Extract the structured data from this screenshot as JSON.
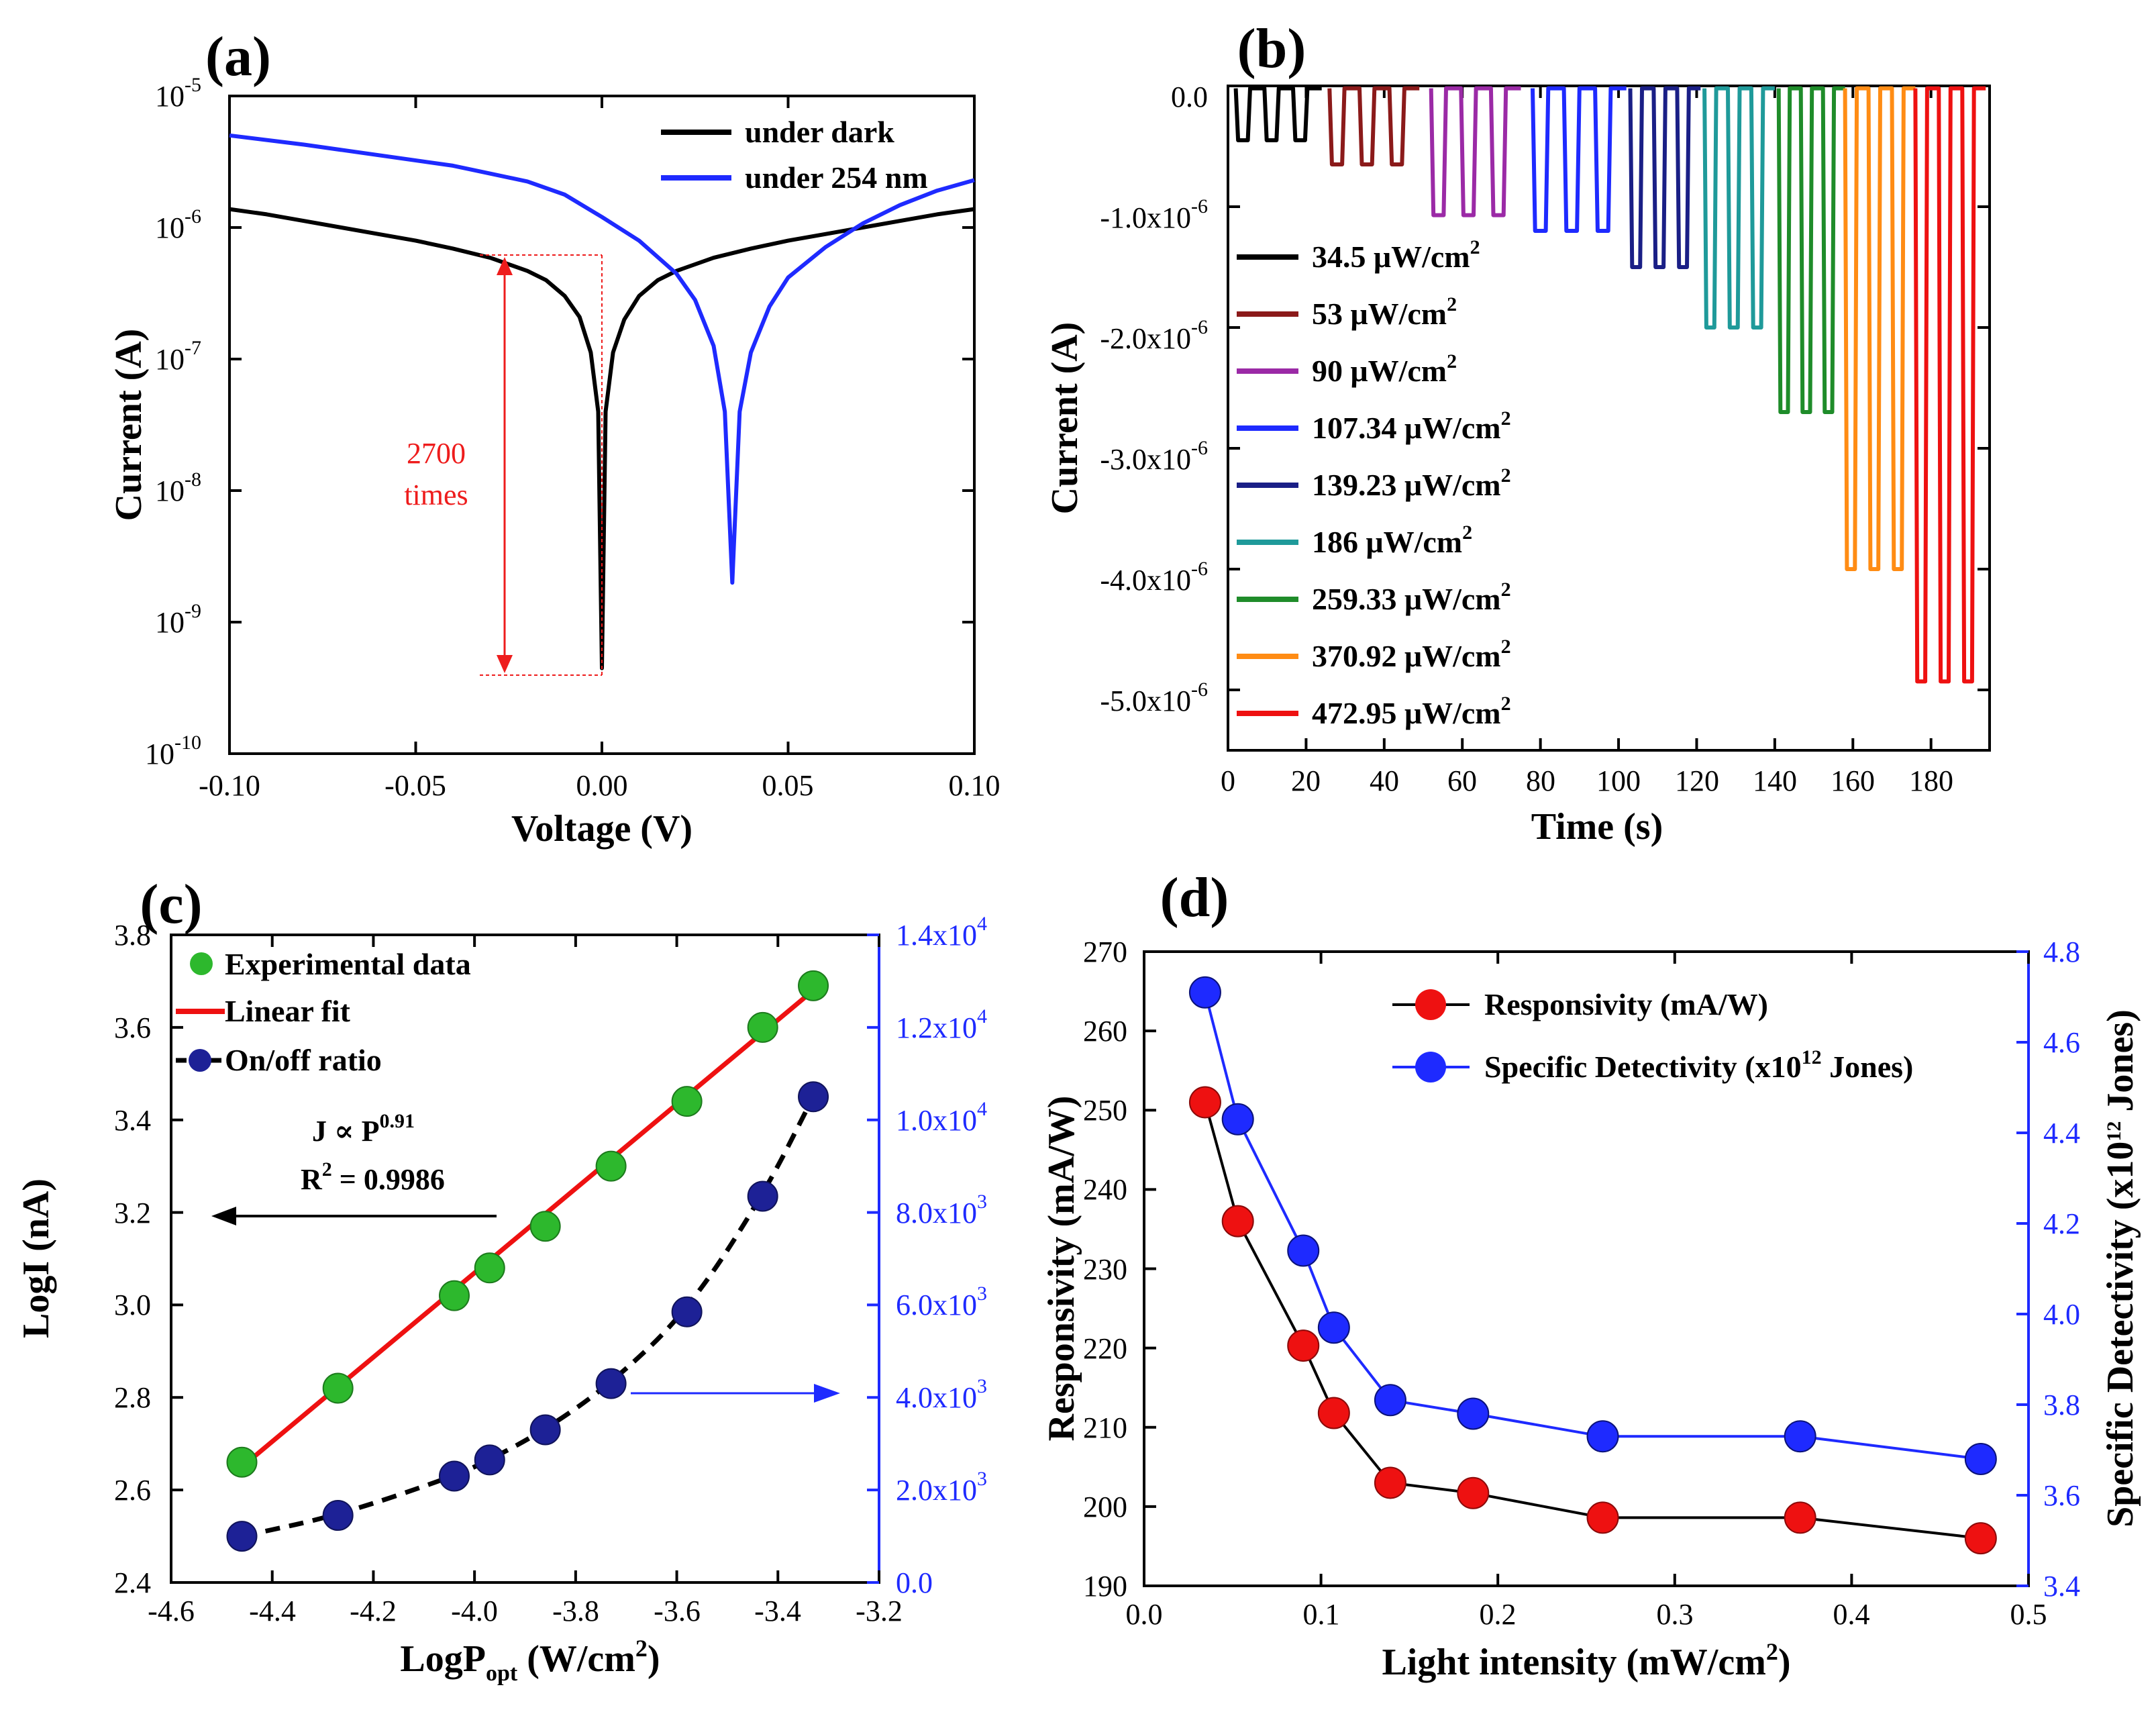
{
  "colors": {
    "dark": "#000000",
    "uv": "#1e2aff",
    "red": "#ee1111",
    "green": "#2db82d",
    "navy": "#1d2196",
    "blue": "#1e2aff",
    "annot": "#ee1c1c"
  },
  "chart_data": [
    {
      "panel": "(a)",
      "type": "line",
      "xlabel": "Voltage (V)",
      "ylabel": "Current (A)",
      "yscale": "log",
      "xlim": [
        -0.1,
        0.1
      ],
      "ylim_exp": [
        -10,
        -5
      ],
      "xticks": [
        "-0.10",
        "-0.05",
        "0.00",
        "0.05",
        "0.10"
      ],
      "yticks": [
        {
          "base": "10",
          "exp": "-10"
        },
        {
          "base": "10",
          "exp": "-9"
        },
        {
          "base": "10",
          "exp": "-8"
        },
        {
          "base": "10",
          "exp": "-7"
        },
        {
          "base": "10",
          "exp": "-6"
        },
        {
          "base": "10",
          "exp": "-5"
        }
      ],
      "series": [
        {
          "name": "under dark",
          "color": "#000000",
          "x": [
            -0.1,
            -0.09,
            -0.08,
            -0.07,
            -0.06,
            -0.05,
            -0.04,
            -0.03,
            -0.02,
            -0.015,
            -0.01,
            -0.006,
            -0.003,
            -0.001,
            0.0,
            0.001,
            0.003,
            0.006,
            0.01,
            0.015,
            0.02,
            0.03,
            0.04,
            0.05,
            0.06,
            0.07,
            0.08,
            0.09,
            0.1
          ],
          "y_log10": [
            -5.86,
            -5.9,
            -5.95,
            -6.0,
            -6.05,
            -6.1,
            -6.16,
            -6.23,
            -6.33,
            -6.4,
            -6.52,
            -6.68,
            -6.95,
            -7.4,
            -9.35,
            -7.4,
            -6.95,
            -6.7,
            -6.52,
            -6.4,
            -6.33,
            -6.23,
            -6.16,
            -6.1,
            -6.05,
            -6.0,
            -5.95,
            -5.9,
            -5.86
          ]
        },
        {
          "name": "under 254 nm",
          "color": "#1e2aff",
          "x": [
            -0.1,
            -0.08,
            -0.06,
            -0.04,
            -0.02,
            -0.01,
            0.0,
            0.01,
            0.02,
            0.025,
            0.03,
            0.033,
            0.035,
            0.037,
            0.04,
            0.045,
            0.05,
            0.06,
            0.07,
            0.08,
            0.09,
            0.1
          ],
          "y_log10": [
            -5.3,
            -5.37,
            -5.45,
            -5.53,
            -5.65,
            -5.75,
            -5.92,
            -6.1,
            -6.35,
            -6.55,
            -6.9,
            -7.4,
            -8.7,
            -7.4,
            -6.95,
            -6.6,
            -6.38,
            -6.15,
            -5.97,
            -5.83,
            -5.72,
            -5.64
          ]
        }
      ],
      "annotation": {
        "line1": "2700",
        "line2": "times"
      }
    },
    {
      "panel": "(b)",
      "type": "line",
      "xlabel": "Time (s)",
      "ylabel": "Current (A)",
      "xlim": [
        0,
        195
      ],
      "ylim": [
        -5.5,
        0.0
      ],
      "xticks": [
        "0",
        "20",
        "40",
        "60",
        "80",
        "100",
        "120",
        "140",
        "160",
        "180"
      ],
      "yticks": [
        {
          "val": "0.0",
          "exp": ""
        },
        {
          "val": "-1.0x10",
          "exp": "-6"
        },
        {
          "val": "-2.0x10",
          "exp": "-6"
        },
        {
          "val": "-3.0x10",
          "exp": "-6"
        },
        {
          "val": "-4.0x10",
          "exp": "-6"
        },
        {
          "val": "-5.0x10",
          "exp": "-6"
        }
      ],
      "unit_suffix": "W/cm",
      "series": [
        {
          "value": "34.5",
          "color": "#000000",
          "t_start": 2,
          "t_end": 24,
          "off": -0.02,
          "on": -0.45
        },
        {
          "value": "53",
          "color": "#8b1a1a",
          "t_start": 26,
          "t_end": 49,
          "off": -0.02,
          "on": -0.65
        },
        {
          "value": "90",
          "color": "#9b2aa6",
          "t_start": 52,
          "t_end": 75,
          "off": -0.02,
          "on": -1.07
        },
        {
          "value": "107.34",
          "color": "#1e2aff",
          "t_start": 78,
          "t_end": 102,
          "off": -0.02,
          "on": -1.2
        },
        {
          "value": "139.23",
          "color": "#1a1f86",
          "t_start": 103,
          "t_end": 121,
          "off": -0.02,
          "on": -1.5
        },
        {
          "value": "186",
          "color": "#1f9a9a",
          "t_start": 122,
          "t_end": 140,
          "off": -0.02,
          "on": -2.0
        },
        {
          "value": "259.33",
          "color": "#1f8c2a",
          "t_start": 141,
          "t_end": 158,
          "off": -0.02,
          "on": -2.7
        },
        {
          "value": "370.92",
          "color": "#ff8c14",
          "t_start": 158,
          "t_end": 176,
          "off": -0.02,
          "on": -4.0
        },
        {
          "value": "472.95",
          "color": "#ee1111",
          "t_start": 176,
          "t_end": 194,
          "off": -0.02,
          "on": -4.93
        }
      ]
    },
    {
      "panel": "(c)",
      "type": "scatter",
      "xlabel_main": "LogP",
      "xlabel_sub": "opt",
      "xlabel_rest": " (W/cm",
      "xlabel_sup": "2",
      "xlabel_end": ")",
      "ylabel": "LogI (nA)",
      "xlim": [
        -4.6,
        -3.2
      ],
      "ylim": [
        2.4,
        3.8
      ],
      "y2lim": [
        0,
        14000
      ],
      "xticks": [
        "-4.6",
        "-4.4",
        "-4.2",
        "-4.0",
        "-3.8",
        "-3.6",
        "-3.4",
        "-3.2"
      ],
      "yticks": [
        "2.4",
        "2.6",
        "2.8",
        "3.0",
        "3.2",
        "3.4",
        "3.6",
        "3.8"
      ],
      "y2ticks": [
        {
          "val": "0.0",
          "exp": ""
        },
        {
          "val": "2.0x10",
          "exp": "3"
        },
        {
          "val": "4.0x10",
          "exp": "3"
        },
        {
          "val": "6.0x10",
          "exp": "3"
        },
        {
          "val": "8.0x10",
          "exp": "3"
        },
        {
          "val": "1.0x10",
          "exp": "4"
        },
        {
          "val": "1.2x10",
          "exp": "4"
        },
        {
          "val": "1.4x10",
          "exp": "4"
        }
      ],
      "x": [
        -4.46,
        -4.27,
        -4.04,
        -3.97,
        -3.86,
        -3.73,
        -3.58,
        -3.43,
        -3.33
      ],
      "series": [
        {
          "name": "Experimental data",
          "axis": "left",
          "values": [
            2.66,
            2.82,
            3.02,
            3.08,
            3.17,
            3.3,
            3.44,
            3.6,
            3.69
          ]
        },
        {
          "name": "Linear fit",
          "axis": "left",
          "x": [
            -4.46,
            -3.33
          ],
          "values": [
            2.65,
            3.68
          ]
        },
        {
          "name": "On/off ratio",
          "axis": "right",
          "values": [
            1000,
            1450,
            2300,
            2650,
            3300,
            4300,
            5850,
            8350,
            10500
          ]
        }
      ],
      "annotation": {
        "j": "J ∝ P",
        "j_exp": "0.91",
        "r2": "R",
        "r2_exp": "2",
        "r2_val": " = 0.9986"
      }
    },
    {
      "panel": "(d)",
      "type": "scatter",
      "xlabel_main": "Light intensity (mW/cm",
      "xlabel_sup": "2",
      "xlabel_end": ")",
      "ylabel": "Responsivity (mA/W)",
      "y2label_main": "Specific Detectivity (x10",
      "y2label_sup": "12",
      "y2label_end": " Jones)",
      "xlim": [
        0.0,
        0.5
      ],
      "ylim": [
        190,
        270
      ],
      "y2lim": [
        3.4,
        4.8
      ],
      "xticks": [
        "0.0",
        "0.1",
        "0.2",
        "0.3",
        "0.4",
        "0.5"
      ],
      "yticks": [
        "190",
        "200",
        "210",
        "220",
        "230",
        "240",
        "250",
        "260",
        "270"
      ],
      "y2ticks": [
        "3.4",
        "3.6",
        "3.8",
        "4.0",
        "4.2",
        "4.4",
        "4.6",
        "4.8"
      ],
      "x": [
        0.0345,
        0.053,
        0.09,
        0.1073,
        0.1392,
        0.186,
        0.2593,
        0.3709,
        0.473
      ],
      "series": [
        {
          "name": "Responsivity (mA/W)",
          "axis": "left",
          "values": [
            251,
            236,
            220.3,
            211.8,
            203,
            201.7,
            198.6,
            198.6,
            196
          ]
        },
        {
          "name": "Specific Detectivity (x10^12 Jones)",
          "legend_main": "Specific Detectivity (x10",
          "legend_sup": "12",
          "legend_end": " Jones)",
          "axis": "right",
          "values": [
            4.71,
            4.43,
            4.14,
            3.97,
            3.81,
            3.78,
            3.73,
            3.73,
            3.68
          ]
        }
      ]
    }
  ]
}
